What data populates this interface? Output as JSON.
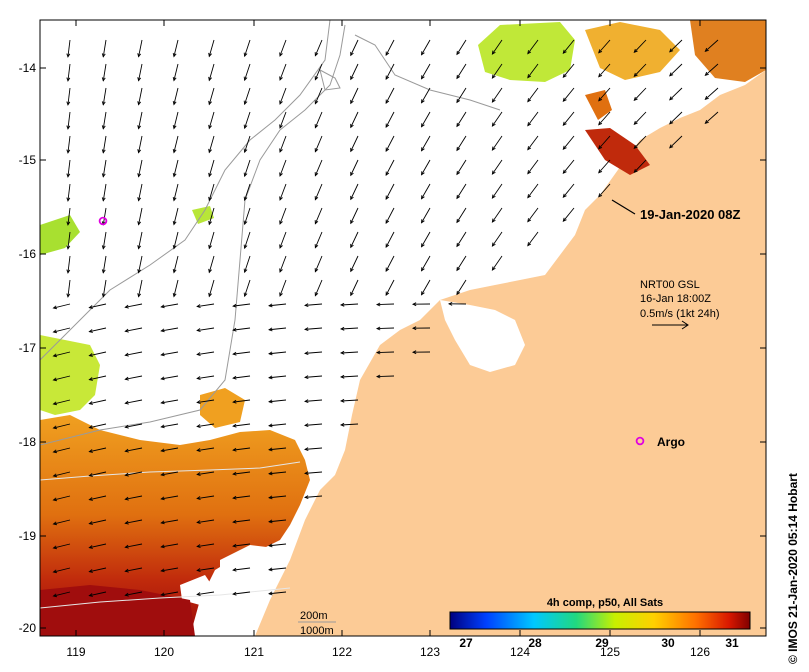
{
  "axes": {
    "x_ticks": [
      "119",
      "120",
      "121",
      "122",
      "123",
      "124",
      "125",
      "126"
    ],
    "y_ticks": [
      "-14",
      "-15",
      "-16",
      "-17",
      "-18",
      "-19",
      "-20"
    ]
  },
  "timestamp": "19-Jan-2020 08Z",
  "current_info": {
    "line1": "NRT00 GSL",
    "line2": "16-Jan 18:00Z",
    "line3": "0.5m/s (1kt 24h)"
  },
  "argo_label": "Argo",
  "isobaths": {
    "line1": "200m",
    "line2": "1000m"
  },
  "colorbar": {
    "title": "4h comp, p50, All Sats",
    "ticks": [
      "27",
      "28",
      "29",
      "30",
      "31"
    ]
  },
  "credit": "© IMOS 21-Jan-2020 05:14 Hobart",
  "colors": {
    "land": "#fccb96",
    "argo": "#e000e0",
    "sst_cool": "#b8e638",
    "sst_warm": "#e88a10",
    "sst_hot": "#a00d0d"
  }
}
